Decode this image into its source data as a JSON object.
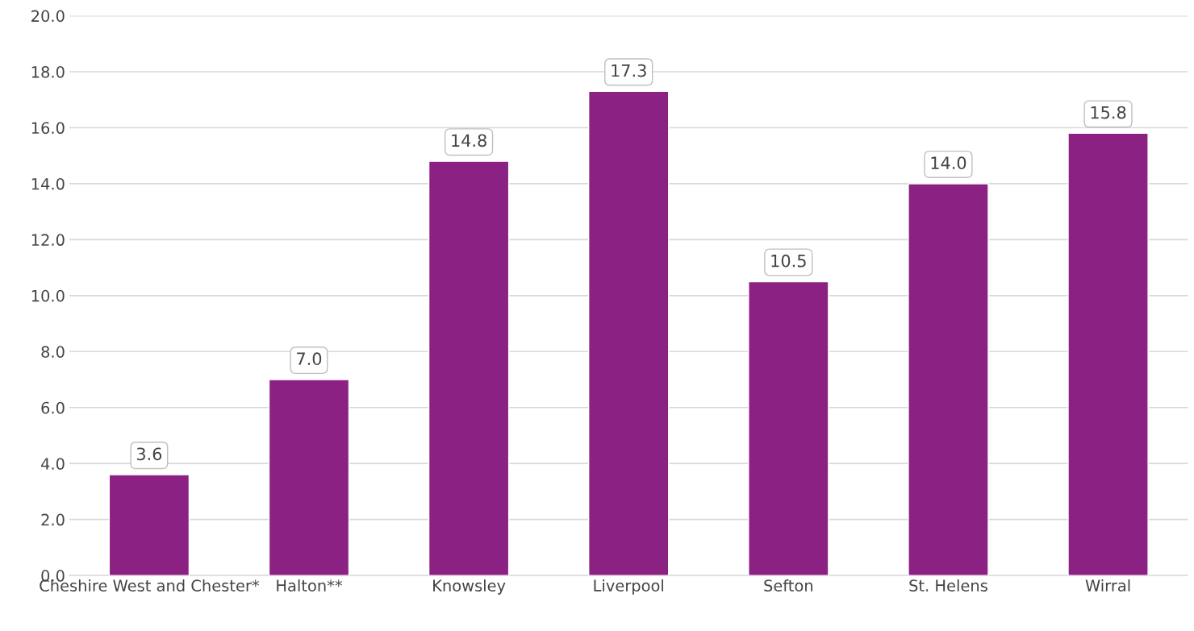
{
  "chart_data": {
    "type": "bar",
    "categories": [
      "Cheshire West and Chester*",
      "Halton**",
      "Knowsley",
      "Liverpool",
      "Sefton",
      "St. Helens",
      "Wirral"
    ],
    "values": [
      3.6,
      7.0,
      14.8,
      17.3,
      10.5,
      14.0,
      15.8
    ],
    "value_labels": [
      "3.6",
      "7.0",
      "14.8",
      "17.3",
      "10.5",
      "14.0",
      "15.8"
    ],
    "color": "#8b2283",
    "ylim": [
      0,
      20
    ],
    "yticks": [
      {
        "value": 0,
        "label": "0.0"
      },
      {
        "value": 2,
        "label": "2.0"
      },
      {
        "value": 4,
        "label": "4.0"
      },
      {
        "value": 6,
        "label": "6.0"
      },
      {
        "value": 8,
        "label": "8.0"
      },
      {
        "value": 10,
        "label": "10.0"
      },
      {
        "value": 12,
        "label": "12.0"
      },
      {
        "value": 14,
        "label": "14.0"
      },
      {
        "value": 16,
        "label": "16.0"
      },
      {
        "value": 18,
        "label": "18.0"
      },
      {
        "value": 20,
        "label": "20.0"
      }
    ],
    "grid": "y"
  }
}
